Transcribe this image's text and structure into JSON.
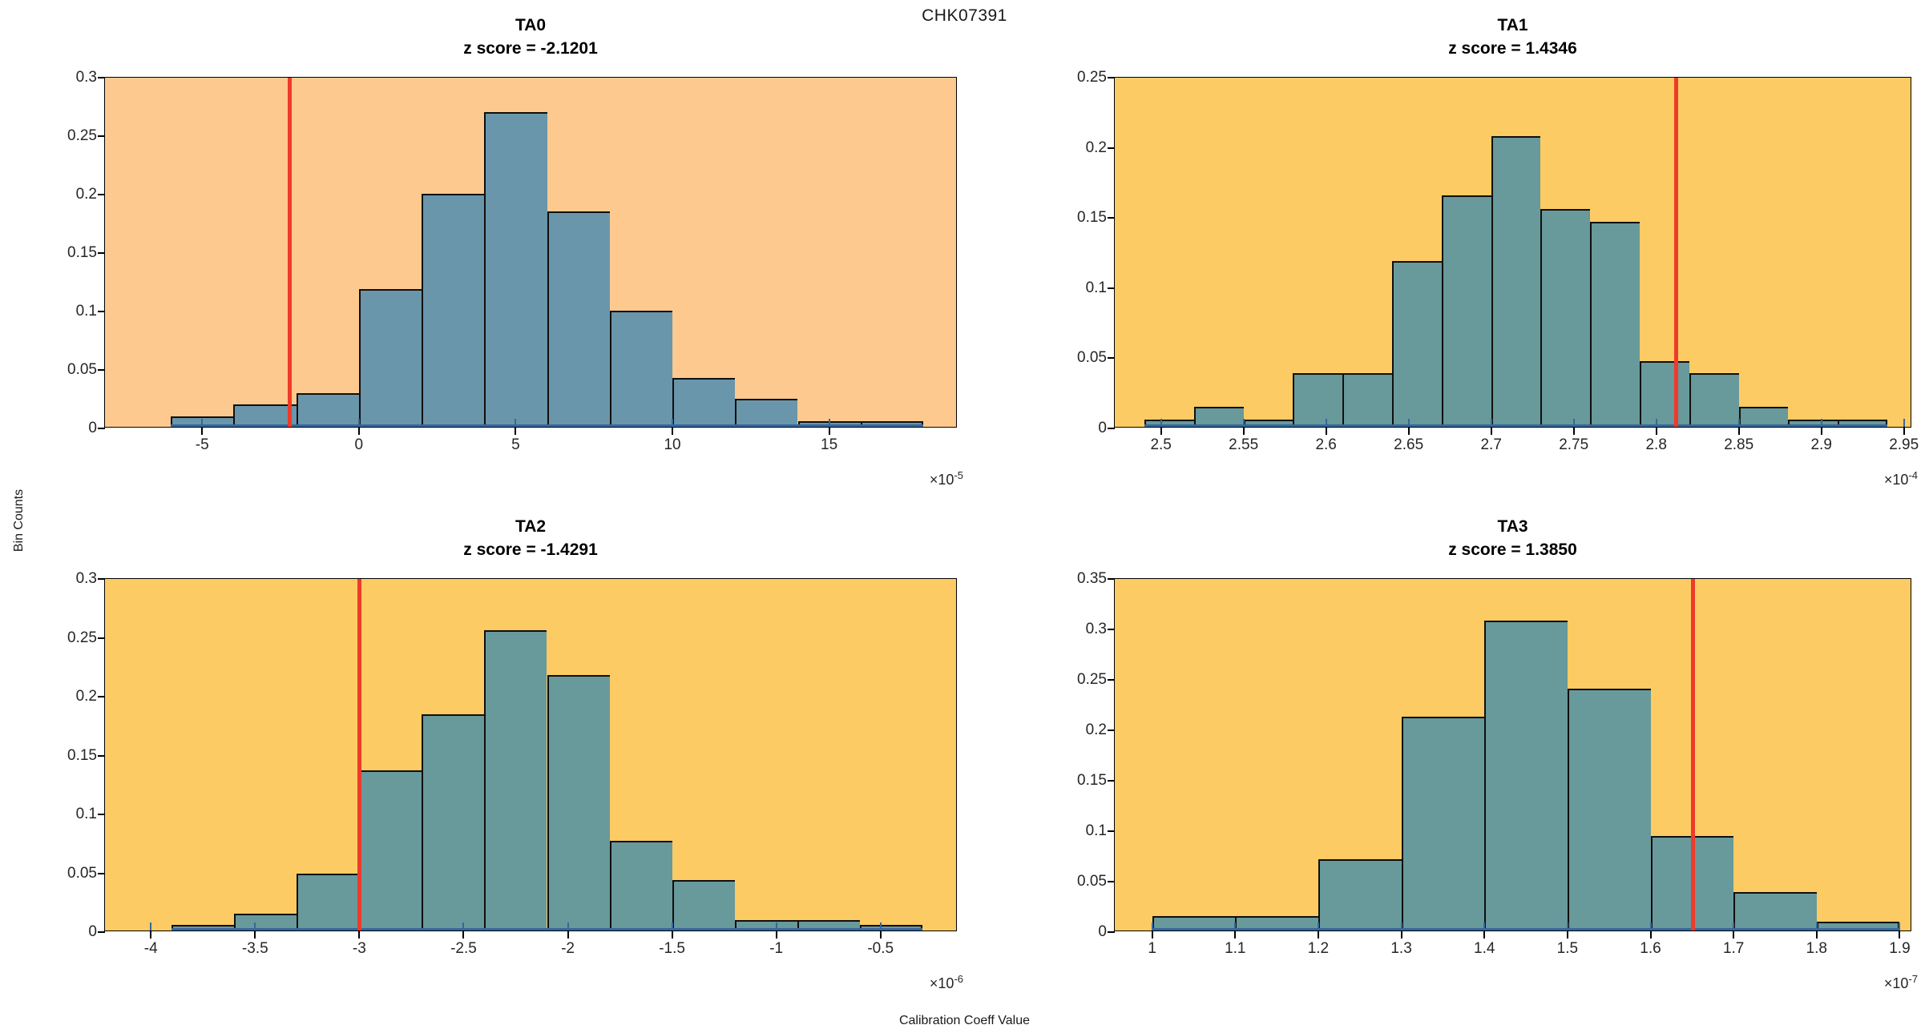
{
  "figure": {
    "title": "CHK07391",
    "ylabel": "Bin Counts",
    "xlabel": "Calibration Coeff Value"
  },
  "colors": {
    "figure_background": "#ffffff",
    "bg_peach": "#fdc98f",
    "bg_gold": "#fdcb64",
    "bar_fill_blue": "#6a96ab",
    "bar_fill_teal": "#68999b",
    "bar_edge": "#0f0f0f",
    "red_line": "#ee3b29",
    "baseline_blue": "#35689d",
    "tick_label": "#262626",
    "axis": "#000000"
  },
  "chart_data": [
    {
      "type": "bar",
      "chart_kind": "histogram",
      "name": "TA0",
      "title": "TA0",
      "subtitle": "z score = -2.1201",
      "z_score": -2.1201,
      "exp_base": "×10",
      "exp_power": "-5",
      "x_unit_exponent": -5,
      "bin_start": -6,
      "bin_width": 2,
      "values": [
        0.009,
        0.019,
        0.029,
        0.118,
        0.199,
        0.269,
        0.184,
        0.099,
        0.042,
        0.024,
        0.005,
        0.005
      ],
      "xlim": [
        -8.1,
        19.1
      ],
      "ylim": [
        0,
        0.3
      ],
      "xticks": [
        -5,
        0,
        5,
        10,
        15
      ],
      "xtick_labels": [
        "-5",
        "0",
        "5",
        "10",
        "15"
      ],
      "yticks": [
        0,
        0.05,
        0.1,
        0.15,
        0.2,
        0.25,
        0.3
      ],
      "ytick_labels": [
        "0",
        "0.05",
        "0.1",
        "0.15",
        "0.2",
        "0.25",
        "0.3"
      ],
      "red_line_x": -2.2,
      "background": "#fdc98f",
      "bar_color": "#6a96ab",
      "grid": false,
      "legend": "none"
    },
    {
      "type": "bar",
      "chart_kind": "histogram",
      "name": "TA1",
      "title": "TA1",
      "subtitle": "z score = 1.4346",
      "z_score": 1.4346,
      "exp_base": "×10",
      "exp_power": "-4",
      "x_unit_exponent": -4,
      "bin_start": 2.49,
      "bin_width": 0.03,
      "values": [
        0.005,
        0.014,
        0.005,
        0.038,
        0.038,
        0.118,
        0.165,
        0.207,
        0.155,
        0.146,
        0.047,
        0.038,
        0.014,
        0.005,
        0.005
      ],
      "xlim": [
        2.472,
        2.955
      ],
      "ylim": [
        0,
        0.25
      ],
      "xticks": [
        2.5,
        2.55,
        2.6,
        2.65,
        2.7,
        2.75,
        2.8,
        2.85,
        2.9,
        2.95
      ],
      "xtick_labels": [
        "2.5",
        "2.55",
        "2.6",
        "2.65",
        "2.7",
        "2.75",
        "2.8",
        "2.85",
        "2.9",
        "2.95"
      ],
      "yticks": [
        0,
        0.05,
        0.1,
        0.15,
        0.2,
        0.25
      ],
      "ytick_labels": [
        "0",
        "0.05",
        "0.1",
        "0.15",
        "0.2",
        "0.25"
      ],
      "red_line_x": 2.812,
      "background": "#fdcb64",
      "bar_color": "#68999b",
      "grid": false,
      "legend": "none"
    },
    {
      "type": "bar",
      "chart_kind": "histogram",
      "name": "TA2",
      "title": "TA2",
      "subtitle": "z score = -1.4291",
      "z_score": -1.4291,
      "exp_base": "×10",
      "exp_power": "-6",
      "x_unit_exponent": -6,
      "bin_start": -3.9,
      "bin_width": 0.3,
      "values": [
        0.005,
        0.014,
        0.048,
        0.136,
        0.184,
        0.255,
        0.217,
        0.076,
        0.043,
        0.009,
        0.009,
        0.005
      ],
      "xlim": [
        -4.22,
        -0.13
      ],
      "ylim": [
        0,
        0.3
      ],
      "xticks": [
        -4,
        -3.5,
        -3,
        -2.5,
        -2,
        -1.5,
        -1,
        -0.5
      ],
      "xtick_labels": [
        "-4",
        "-3.5",
        "-3",
        "-2.5",
        "-2",
        "-1.5",
        "-1",
        "-0.5"
      ],
      "yticks": [
        0,
        0.05,
        0.1,
        0.15,
        0.2,
        0.25,
        0.3
      ],
      "ytick_labels": [
        "0",
        "0.05",
        "0.1",
        "0.15",
        "0.2",
        "0.25",
        "0.3"
      ],
      "red_line_x": -3.0,
      "background": "#fdcb64",
      "bar_color": "#68999b",
      "grid": false,
      "legend": "none"
    },
    {
      "type": "bar",
      "chart_kind": "histogram",
      "name": "TA3",
      "title": "TA3",
      "subtitle": "z score = 1.3850",
      "z_score": 1.385,
      "exp_base": "×10",
      "exp_power": "-7",
      "x_unit_exponent": -7,
      "bin_start": 1.0,
      "bin_width": 0.1,
      "values": [
        0.014,
        0.014,
        0.071,
        0.212,
        0.307,
        0.24,
        0.094,
        0.038,
        0.009
      ],
      "xlim": [
        0.955,
        1.915
      ],
      "ylim": [
        0,
        0.35
      ],
      "xticks": [
        1,
        1.1,
        1.2,
        1.3,
        1.4,
        1.5,
        1.6,
        1.7,
        1.8,
        1.9
      ],
      "xtick_labels": [
        "1",
        "1.1",
        "1.2",
        "1.3",
        "1.4",
        "1.5",
        "1.6",
        "1.7",
        "1.8",
        "1.9"
      ],
      "yticks": [
        0,
        0.05,
        0.1,
        0.15,
        0.2,
        0.25,
        0.3,
        0.35
      ],
      "ytick_labels": [
        "0",
        "0.05",
        "0.1",
        "0.15",
        "0.2",
        "0.25",
        "0.3",
        "0.35"
      ],
      "red_line_x": 1.651,
      "background": "#fdcb64",
      "bar_color": "#68999b",
      "grid": false,
      "legend": "none"
    }
  ]
}
